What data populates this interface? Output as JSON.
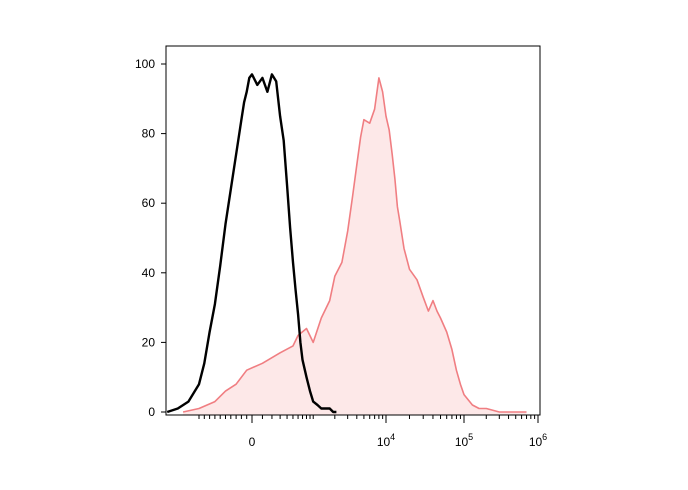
{
  "chart_data": {
    "type": "area",
    "title": "",
    "xlabel": "",
    "ylabel": "",
    "x_scale": "biexponential",
    "ylim": [
      0,
      100
    ],
    "grid": false,
    "y_ticks": [
      "0",
      "20",
      "40",
      "60",
      "80",
      "100"
    ],
    "x_tick_labels": [
      {
        "value": 0,
        "base": "0",
        "exp": ""
      },
      {
        "value": 10000,
        "base": "10",
        "exp": "4"
      },
      {
        "value": 100000,
        "base": "10",
        "exp": "5"
      },
      {
        "value": 1000000,
        "base": "10",
        "exp": "6"
      }
    ],
    "series": [
      {
        "style": "outline",
        "color": "#000000",
        "x": [
          -1600,
          -1400,
          -1200,
          -1000,
          -900,
          -800,
          -700,
          -600,
          -500,
          -400,
          -300,
          -200,
          -150,
          -100,
          -50,
          0,
          50,
          100,
          150,
          200,
          250,
          300,
          350,
          400,
          450,
          500,
          550,
          600,
          650,
          700,
          800,
          900,
          1000,
          1150,
          1300,
          1500,
          1700,
          1900,
          2100
        ],
        "values": [
          0,
          1,
          3,
          8,
          14,
          23,
          31,
          42,
          54,
          64,
          74,
          84,
          89,
          92,
          96,
          97,
          94,
          96,
          92,
          97,
          95,
          85,
          78,
          65,
          53,
          43,
          35,
          28,
          20,
          15,
          10,
          6,
          3,
          2,
          1,
          1,
          1,
          0,
          0
        ]
      },
      {
        "style": "filled",
        "color": "#f07e82",
        "fill": "#fde8e8",
        "x": [
          -1300,
          -1000,
          -700,
          -500,
          -300,
          -100,
          100,
          300,
          500,
          600,
          800,
          1000,
          1300,
          1700,
          2000,
          2500,
          3000,
          3500,
          4000,
          4500,
          5000,
          6000,
          7000,
          8000,
          9000,
          10000,
          11000,
          12000,
          13000,
          14000,
          15000,
          17000,
          20000,
          25000,
          30000,
          35000,
          40000,
          45000,
          50000,
          60000,
          70000,
          80000,
          90000,
          100000,
          130000,
          160000,
          200000,
          300000,
          400000,
          500000,
          700000
        ],
        "values": [
          0,
          1,
          3,
          6,
          8,
          12,
          14,
          17,
          19,
          22,
          24,
          20,
          27,
          32,
          39,
          43,
          52,
          62,
          71,
          79,
          84,
          83,
          87,
          96,
          92,
          85,
          81,
          74,
          67,
          59,
          55,
          47,
          41,
          38,
          33,
          29,
          32,
          29,
          27,
          23,
          18,
          12,
          8,
          5,
          2,
          1,
          1,
          0,
          0,
          0,
          0
        ]
      }
    ]
  }
}
